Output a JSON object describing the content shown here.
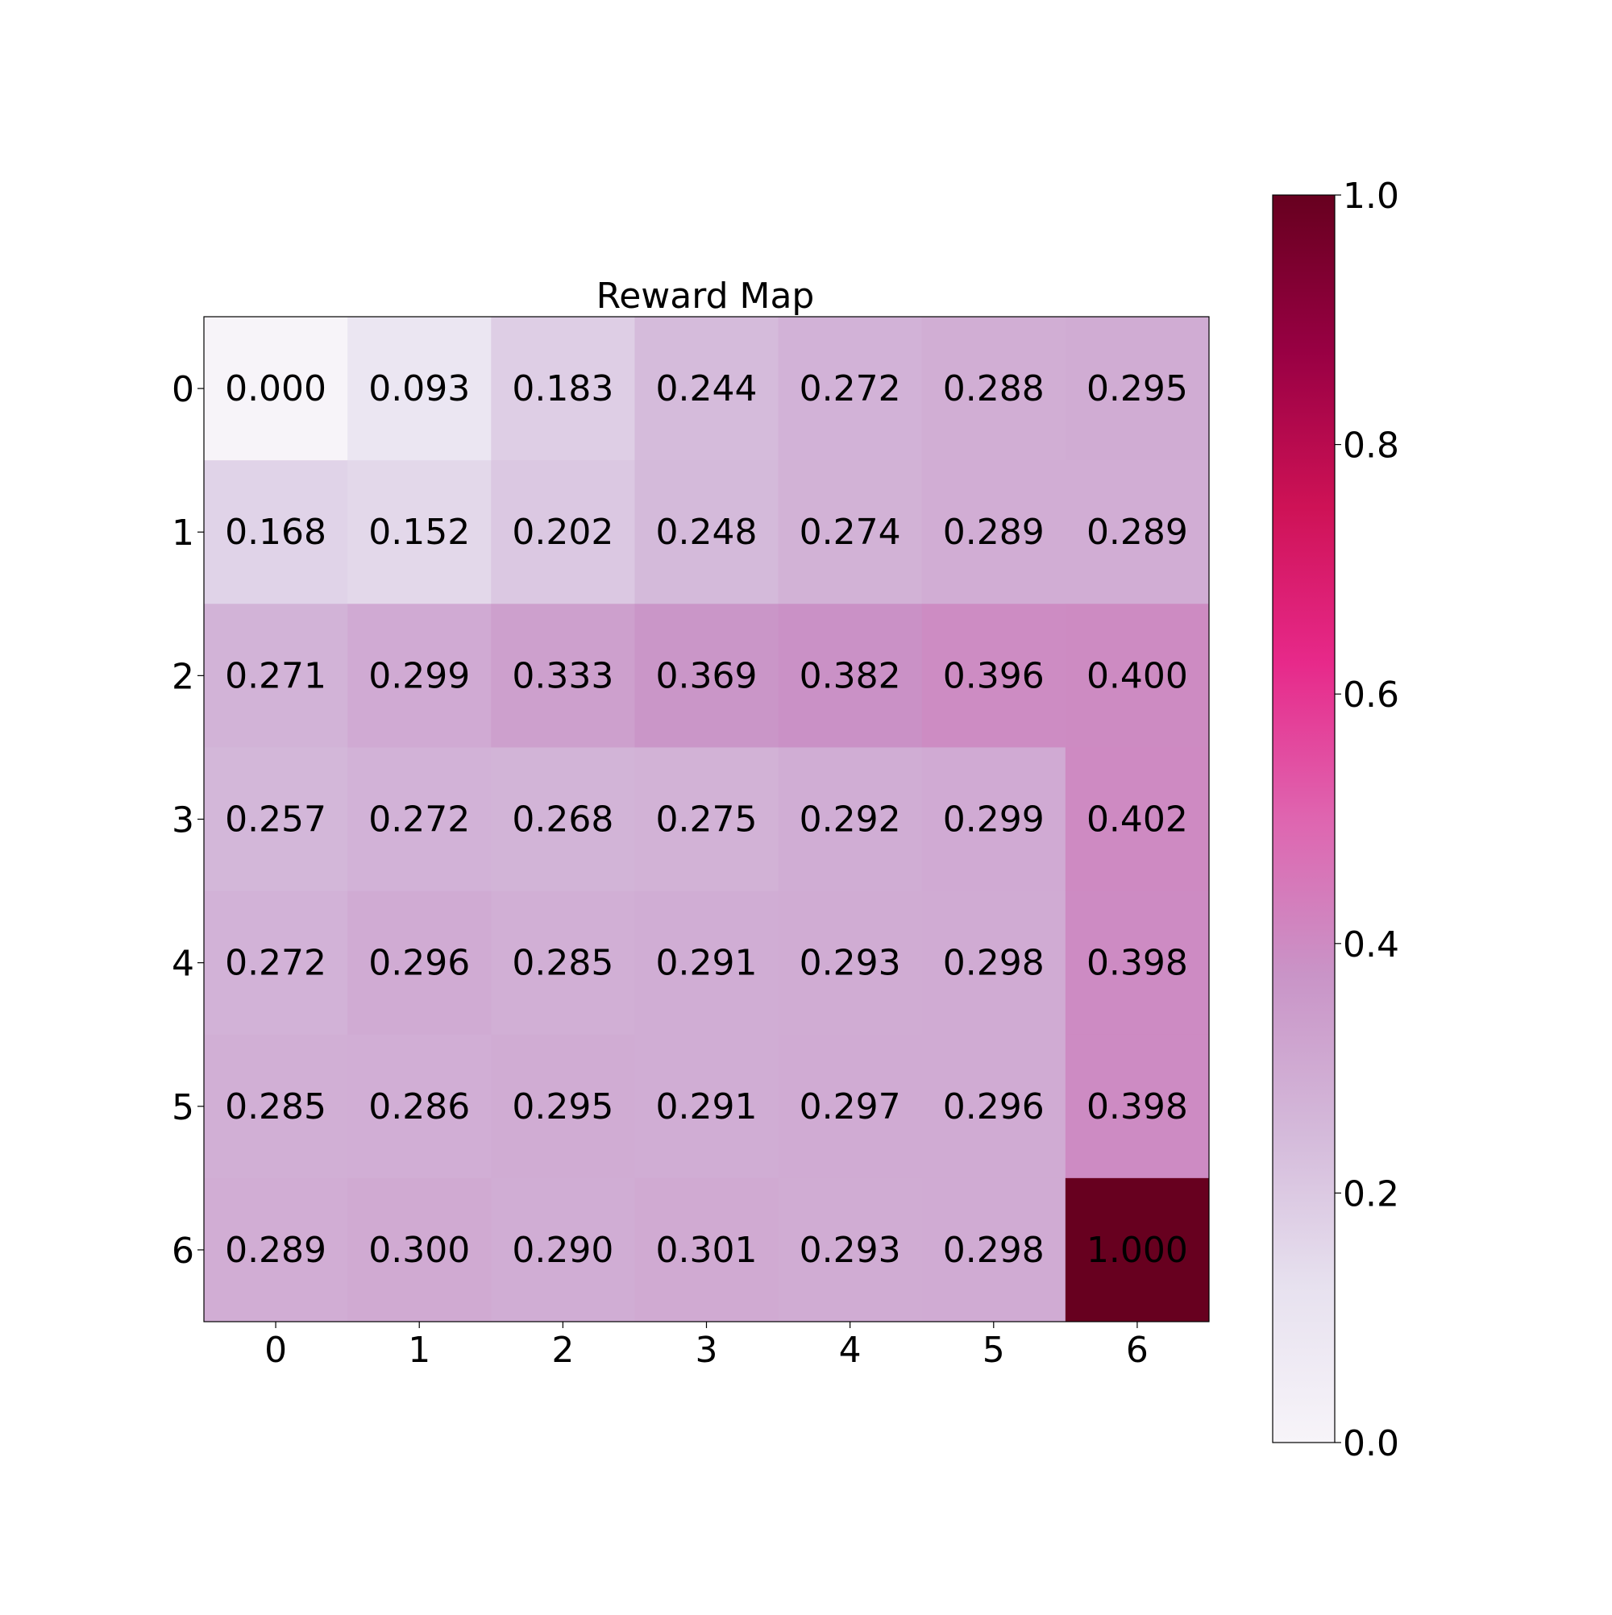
{
  "chart_data": {
    "type": "heatmap",
    "title": "Reward Map",
    "x_categories": [
      "0",
      "1",
      "2",
      "3",
      "4",
      "5",
      "6"
    ],
    "y_categories": [
      "0",
      "1",
      "2",
      "3",
      "4",
      "5",
      "6"
    ],
    "values": [
      [
        0.0,
        0.093,
        0.183,
        0.244,
        0.272,
        0.288,
        0.295
      ],
      [
        0.168,
        0.152,
        0.202,
        0.248,
        0.274,
        0.289,
        0.289
      ],
      [
        0.271,
        0.299,
        0.333,
        0.369,
        0.382,
        0.396,
        0.4
      ],
      [
        0.257,
        0.272,
        0.268,
        0.275,
        0.292,
        0.299,
        0.402
      ],
      [
        0.272,
        0.296,
        0.285,
        0.291,
        0.293,
        0.298,
        0.398
      ],
      [
        0.285,
        0.286,
        0.295,
        0.291,
        0.297,
        0.296,
        0.398
      ],
      [
        0.289,
        0.3,
        0.29,
        0.301,
        0.293,
        0.298,
        1.0
      ]
    ],
    "value_format": "3 decimals",
    "colorscale": "PuRd",
    "colorbar": {
      "range": [
        0.0,
        1.0
      ],
      "ticks": [
        "0.0",
        "0.2",
        "0.4",
        "0.6",
        "0.8",
        "1.0"
      ],
      "position": "right"
    },
    "grid": false
  }
}
